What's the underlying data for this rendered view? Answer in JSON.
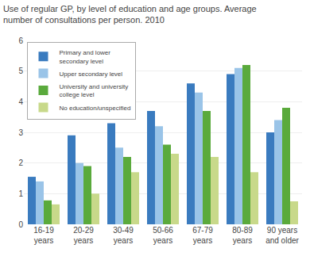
{
  "chart_data": {
    "type": "bar",
    "title": "Use of regular GP, by level of education and age groups. Average\nnumber of consultations per person. 2010",
    "categories": [
      "16-19\nyears",
      "20-29\nyears",
      "30-49\nyears",
      "50-66\nyears",
      "67-79\nyears",
      "80-89\nyears",
      "90 years\nand older"
    ],
    "series": [
      {
        "name": "Primary and lower\nsecondary level",
        "color": "#3a7bbf",
        "values": [
          1.55,
          2.9,
          3.3,
          3.7,
          4.6,
          4.9,
          3.0
        ]
      },
      {
        "name": "Upper secondary level",
        "color": "#9ac4e8",
        "values": [
          1.4,
          2.0,
          2.5,
          3.2,
          4.3,
          5.1,
          3.4
        ]
      },
      {
        "name": "University and university\ncollege level",
        "color": "#5aaa3c",
        "values": [
          0.78,
          1.9,
          2.2,
          2.6,
          3.7,
          5.2,
          3.8
        ]
      },
      {
        "name": "No education/unspecified",
        "color": "#c8d98a",
        "values": [
          0.65,
          1.0,
          1.7,
          2.3,
          2.2,
          1.7,
          0.75
        ]
      }
    ],
    "ylim": [
      0,
      6
    ],
    "yticks": [
      0,
      1,
      2,
      3,
      4,
      5,
      6
    ],
    "grid": true,
    "legend": "upper left"
  }
}
